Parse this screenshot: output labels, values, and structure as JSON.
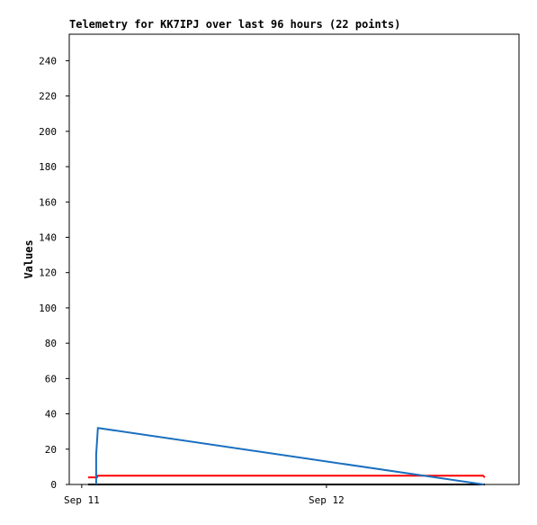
{
  "chart_data": {
    "type": "line",
    "title": "Telemetry for KK7IPJ over last 96 hours (22 points)",
    "y_label": "Values",
    "xlim": [
      -0.051,
      1.787
    ],
    "xticks": [
      {
        "value": 0,
        "label": "Sep 11"
      },
      {
        "value": 1,
        "label": "Sep 12"
      }
    ],
    "ylim": [
      0,
      255
    ],
    "yticks": [
      0,
      20,
      40,
      60,
      80,
      100,
      120,
      140,
      160,
      180,
      200,
      220,
      240
    ],
    "grid": false,
    "series": [
      {
        "color": "#000000",
        "x": [
          0.026,
          1.647
        ],
        "values": [
          0,
          0
        ]
      },
      {
        "color": "#ff0000",
        "x": [
          0.026,
          0.062,
          0.066,
          1.64,
          1.647
        ],
        "values": [
          4,
          4,
          5,
          5,
          4
        ]
      },
      {
        "color": "#1a6fbf",
        "x": [
          0.059,
          0.059,
          0.066,
          1.643
        ],
        "values": [
          0,
          17,
          32,
          0
        ]
      }
    ]
  }
}
